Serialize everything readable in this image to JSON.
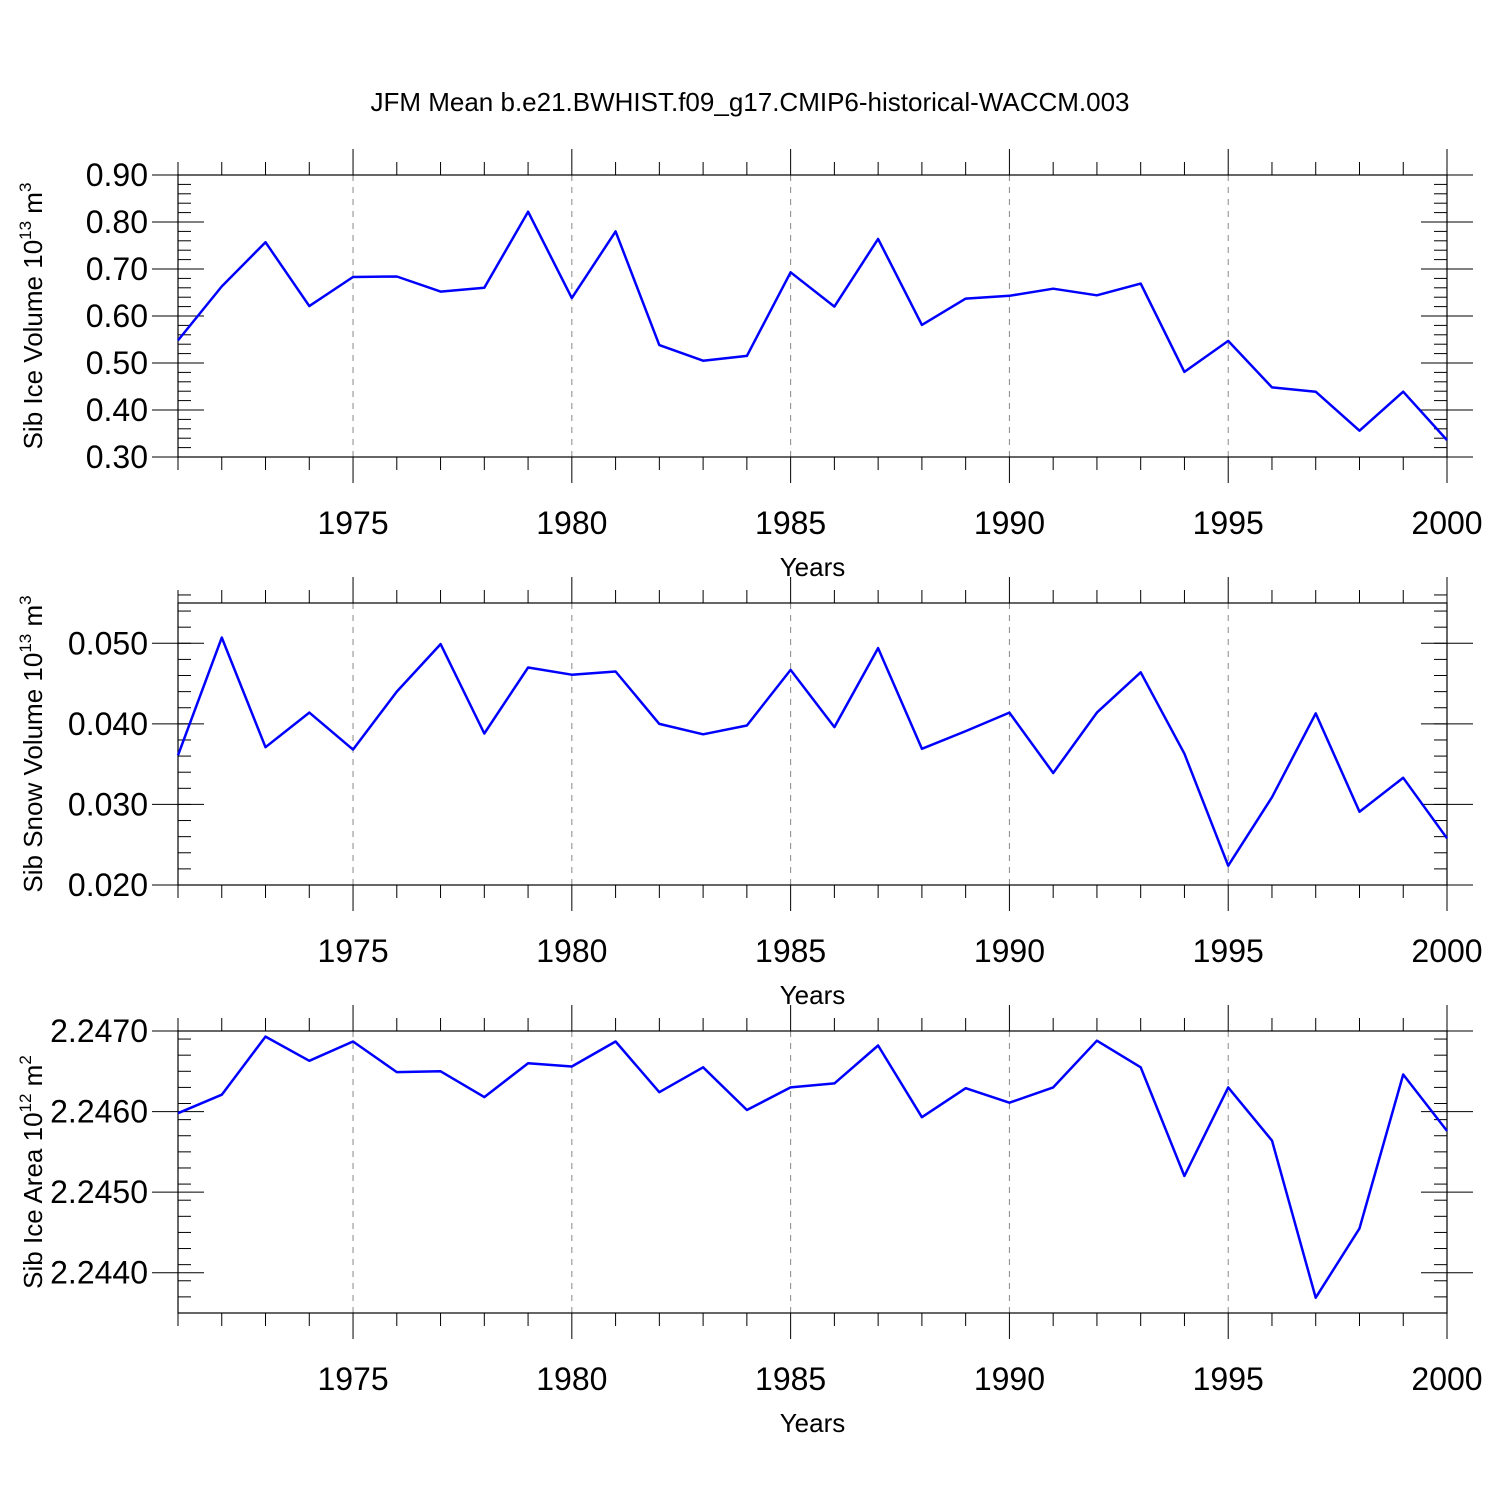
{
  "figure_title": "JFM Mean b.e21.BWHIST.f09_g17.CMIP6-historical-WACCM.003",
  "colors": {
    "series": "#0000ff",
    "axis": "#000000",
    "grid": "#888888"
  },
  "chart_data": [
    {
      "type": "line",
      "xlabel": "Years",
      "ylabel_main": "Sib Ice Volume 10",
      "ylabel_sup1": "13",
      "ylabel_mid": " m",
      "ylabel_sup2": "3",
      "xlim": [
        1971,
        2000
      ],
      "ylim": [
        0.3,
        0.9
      ],
      "x_ticks": [
        1975,
        1980,
        1985,
        1990,
        1995,
        2000
      ],
      "x_tick_labels": [
        "1975",
        "1980",
        "1985",
        "1990",
        "1995",
        "2000"
      ],
      "y_ticks": [
        0.3,
        0.4,
        0.5,
        0.6,
        0.7,
        0.8,
        0.9
      ],
      "y_tick_labels": [
        "0.30",
        "0.40",
        "0.50",
        "0.60",
        "0.70",
        "0.80",
        "0.90"
      ],
      "y_minor_step": 0.02,
      "x": [
        1971,
        1972,
        1973,
        1974,
        1975,
        1976,
        1977,
        1978,
        1979,
        1980,
        1981,
        1982,
        1983,
        1984,
        1985,
        1986,
        1987,
        1988,
        1989,
        1990,
        1991,
        1992,
        1993,
        1994,
        1995,
        1996,
        1997,
        1998,
        1999,
        2000
      ],
      "values": [
        0.548,
        0.663,
        0.757,
        0.621,
        0.683,
        0.684,
        0.652,
        0.66,
        0.822,
        0.638,
        0.78,
        0.538,
        0.505,
        0.515,
        0.693,
        0.62,
        0.764,
        0.581,
        0.637,
        0.643,
        0.658,
        0.644,
        0.669,
        0.481,
        0.547,
        0.448,
        0.439,
        0.356,
        0.439,
        0.336
      ]
    },
    {
      "type": "line",
      "xlabel": "Years",
      "ylabel_main": "Sib Snow Volume 10",
      "ylabel_sup1": "13",
      "ylabel_mid": " m",
      "ylabel_sup2": "3",
      "xlim": [
        1971,
        2000
      ],
      "ylim": [
        0.02,
        0.055
      ],
      "x_ticks": [
        1975,
        1980,
        1985,
        1990,
        1995,
        2000
      ],
      "x_tick_labels": [
        "1975",
        "1980",
        "1985",
        "1990",
        "1995",
        "2000"
      ],
      "y_ticks": [
        0.02,
        0.03,
        0.04,
        0.05
      ],
      "y_tick_labels": [
        "0.020",
        "0.030",
        "0.040",
        "0.050"
      ],
      "y_minor_step": 0.002,
      "x": [
        1971,
        1972,
        1973,
        1974,
        1975,
        1976,
        1977,
        1978,
        1979,
        1980,
        1981,
        1982,
        1983,
        1984,
        1985,
        1986,
        1987,
        1988,
        1989,
        1990,
        1991,
        1992,
        1993,
        1994,
        1995,
        1996,
        1997,
        1998,
        1999,
        2000
      ],
      "values": [
        0.0361,
        0.0507,
        0.0371,
        0.0414,
        0.0368,
        0.044,
        0.0499,
        0.0388,
        0.047,
        0.0461,
        0.0465,
        0.04,
        0.0387,
        0.0398,
        0.0467,
        0.0396,
        0.0494,
        0.0369,
        0.0391,
        0.0414,
        0.0339,
        0.0414,
        0.0464,
        0.0363,
        0.0224,
        0.0309,
        0.0413,
        0.0291,
        0.0333,
        0.0258
      ]
    },
    {
      "type": "line",
      "xlabel": "Years",
      "ylabel_main": "Sib Ice Area 10",
      "ylabel_sup1": "12",
      "ylabel_mid": " m",
      "ylabel_sup2": "2",
      "xlim": [
        1971,
        2000
      ],
      "ylim": [
        2.2435,
        2.247
      ],
      "x_ticks": [
        1975,
        1980,
        1985,
        1990,
        1995,
        2000
      ],
      "x_tick_labels": [
        "1975",
        "1980",
        "1985",
        "1990",
        "1995",
        "2000"
      ],
      "y_ticks": [
        2.244,
        2.245,
        2.246,
        2.247
      ],
      "y_tick_labels": [
        "2.2440",
        "2.2450",
        "2.2460",
        "2.2470"
      ],
      "y_minor_step": 0.0002,
      "x": [
        1971,
        1972,
        1973,
        1974,
        1975,
        1976,
        1977,
        1978,
        1979,
        1980,
        1981,
        1982,
        1983,
        1984,
        1985,
        1986,
        1987,
        1988,
        1989,
        1990,
        1991,
        1992,
        1993,
        1994,
        1995,
        1996,
        1997,
        1998,
        1999,
        2000
      ],
      "values": [
        2.24598,
        2.24621,
        2.24693,
        2.24663,
        2.24687,
        2.24649,
        2.2465,
        2.24618,
        2.2466,
        2.24656,
        2.24687,
        2.24624,
        2.24655,
        2.24602,
        2.2463,
        2.24635,
        2.24682,
        2.24593,
        2.24629,
        2.24611,
        2.2463,
        2.24688,
        2.24655,
        2.2452,
        2.2463,
        2.24564,
        2.24369,
        2.24455,
        2.24646,
        2.24576
      ]
    }
  ]
}
